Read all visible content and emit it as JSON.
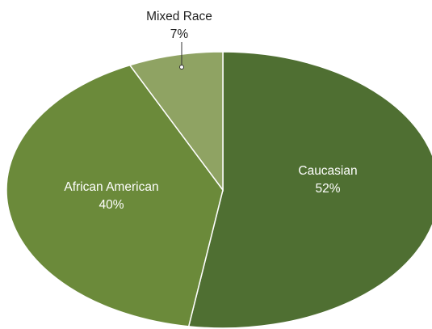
{
  "chart_data": {
    "type": "pie",
    "title": "",
    "slices": [
      {
        "label": "Caucasian",
        "value": 52,
        "value_label": "52%",
        "color": "#4f6f32"
      },
      {
        "label": "African American",
        "value": 40,
        "value_label": "40%",
        "color": "#6b8a3a"
      },
      {
        "label": "Mixed Race",
        "value": 7,
        "value_label": "7%",
        "color": "#8fa363"
      }
    ],
    "legend": "none"
  }
}
